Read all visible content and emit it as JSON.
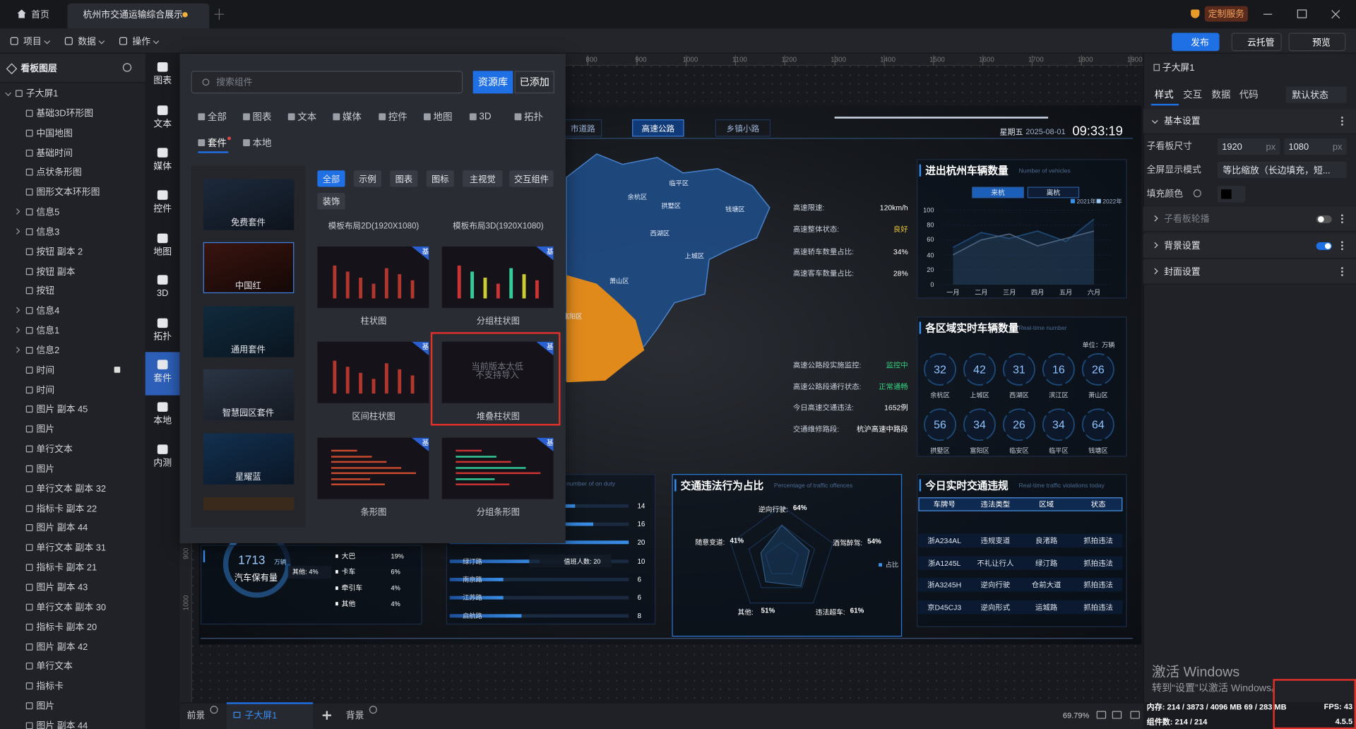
{
  "tabs": {
    "home": "首页",
    "document": "杭州市交通运输综合展示"
  },
  "custom_service": "定制服务",
  "toolbar": {
    "menus": [
      "项目",
      "数据",
      "操作"
    ],
    "actions": [
      "发布",
      "云托管",
      "预览"
    ]
  },
  "layers": {
    "title": "看板图层",
    "items": [
      "子大屏1",
      "基础3D环形图",
      "中国地图",
      "基础时间",
      "点状条形图",
      "图形文本环形图",
      "信息5",
      "信息3",
      "按钮 副本 2",
      "按钮 副本",
      "按钮",
      "信息4",
      "信息1",
      "信息2",
      "时间",
      "时间",
      "图片 副本 45",
      "图片",
      "单行文本",
      "图片",
      "单行文本 副本 32",
      "指标卡 副本 22",
      "图片 副本 44",
      "单行文本 副本 31",
      "指标卡 副本 21",
      "图片 副本 43",
      "单行文本 副本 30",
      "指标卡 副本 20",
      "图片 副本 42",
      "单行文本",
      "指标卡",
      "图片",
      "图片 副本 44"
    ]
  },
  "sidebar": [
    "图表",
    "文本",
    "媒体",
    "控件",
    "地图",
    "3D",
    "拓扑",
    "套件",
    "本地",
    "内测"
  ],
  "library": {
    "search_placeholder": "搜索组件",
    "tabs": [
      "资源库",
      "已添加"
    ],
    "categories": [
      "全部",
      "图表",
      "文本",
      "媒体",
      "控件",
      "地图",
      "3D",
      "拓扑",
      "套件",
      "本地"
    ],
    "kits": [
      "免费套件",
      "中国红",
      "通用套件",
      "智慧园区套件",
      "星耀蓝"
    ],
    "filters": [
      "全部",
      "示例",
      "图表",
      "图标",
      "主视觉",
      "交互组件",
      "装饰"
    ],
    "templates": [
      "模板布局2D(1920X1080)",
      "模板布局3D(1920X1080)"
    ],
    "cards": [
      {
        "name": "柱状图",
        "badge": "基"
      },
      {
        "name": "分组柱状图",
        "badge": "基"
      },
      {
        "name": "区间柱状图",
        "badge": "基"
      },
      {
        "name": "堆叠柱状图",
        "badge": "基"
      },
      {
        "name": "条形图",
        "badge": "基"
      },
      {
        "name": "分组条形图",
        "badge": "基"
      }
    ],
    "unsupported": "当前版本太低 不支持导入"
  },
  "ruler": {
    "top": [
      "800",
      "900",
      "1000",
      "1100",
      "1200",
      "1300",
      "1400",
      "1500",
      "1600",
      "1700",
      "1800",
      "1900"
    ],
    "left": [
      "900",
      "1000"
    ]
  },
  "dashboard": {
    "nav": [
      "市道路",
      "高速公路",
      "乡镇小路"
    ],
    "weekday": "星期五",
    "date": "2025-08-01",
    "time": "09:33:19",
    "districts": [
      "临平区",
      "余杭区",
      "拱墅区",
      "钱塘区",
      "西湖区",
      "上城区",
      "萧山区",
      "富阳区"
    ],
    "stats_top": [
      [
        "高速限速:",
        "120km/h"
      ],
      [
        "高速整体状态:",
        "良好"
      ],
      [
        "高速轿车数量占比:",
        "34%"
      ],
      [
        "高速客车数量占比:",
        "28%"
      ]
    ],
    "stats_bottom": [
      [
        "高速公路段实施监控:",
        "监控中"
      ],
      [
        "高速公路段通行状态:",
        "正常通畅"
      ],
      [
        "今日高速交通违法:",
        "1652例"
      ],
      [
        "交通维修路段:",
        "杭沪高速中路段"
      ]
    ],
    "vehicles": {
      "title": "进出杭州车辆数量",
      "subtitle": "Number of vehicles",
      "toggle": [
        "来杭",
        "离杭"
      ],
      "categories": [
        "一月",
        "二月",
        "三月",
        "四月",
        "五月",
        "六月"
      ],
      "yticks": [
        0,
        20,
        40,
        60,
        80,
        100
      ],
      "ylim": [
        0,
        100
      ],
      "series": [
        {
          "name": "2021年",
          "color": "#3a8ee6",
          "values": [
            50,
            70,
            62,
            72,
            58,
            88
          ]
        },
        {
          "name": "2022年",
          "color": "#9ec8f5",
          "values": [
            40,
            60,
            68,
            52,
            62,
            72
          ]
        }
      ]
    },
    "regions": {
      "title": "各区域实时车辆数量",
      "subtitle": "Real-time number",
      "unit": "单位：万辆",
      "items": [
        [
          "32",
          "余杭区"
        ],
        [
          "42",
          "上城区"
        ],
        [
          "31",
          "西湖区"
        ],
        [
          "16",
          "滨江区"
        ],
        [
          "26",
          "萧山区"
        ],
        [
          "56",
          "拱墅区"
        ],
        [
          "34",
          "富阳区"
        ],
        [
          "26",
          "临安区"
        ],
        [
          "34",
          "临平区"
        ],
        [
          "64",
          "钱塘区"
        ]
      ]
    },
    "offences": {
      "title": "交通违法行为占比",
      "subtitle": "Percentage of traffic offences",
      "legend": "占比",
      "axes": [
        "逆向行驶:",
        "酒驾醉驾:",
        "违法超车:",
        "其他:",
        "随意变道:"
      ],
      "values": [
        64,
        54,
        61,
        51,
        41
      ],
      "value_labels": [
        "64%",
        "54%",
        "61%",
        "51%",
        "41%"
      ]
    },
    "violations": {
      "title": "今日实时交通违规",
      "subtitle": "Real-time traffic violations today",
      "columns": [
        "车牌号",
        "违法类型",
        "区域",
        "状态"
      ],
      "rows": [
        [
          "浙A234AL",
          "违规变道",
          "良渚路",
          "抓拍违法"
        ],
        [
          "浙A1245L",
          "不礼让行人",
          "绿汀路",
          "抓拍违法"
        ],
        [
          "浙A3245H",
          "逆向行驶",
          "仓前大道",
          "抓拍违法"
        ],
        [
          "京D45CJ3",
          "逆向形式",
          "运城路",
          "抓拍违法"
        ]
      ]
    },
    "ownership": {
      "value": "1713",
      "unit": "万辆",
      "label": "汽车保有量",
      "tooltip": "其他: 4%",
      "legend": [
        [
          "大巴",
          "19%"
        ],
        [
          "卡车",
          "6%"
        ],
        [
          "牵引车",
          "4%"
        ],
        [
          "其他",
          "4%"
        ]
      ]
    },
    "duty": {
      "subtitle": "number of on duty",
      "tooltip": "值班人数: 20",
      "roads": [
        null,
        null,
        null,
        "绿汀路",
        "南京路",
        "江苏路",
        "启航路"
      ],
      "values": [
        14,
        16,
        20,
        10,
        6,
        6,
        8
      ],
      "xlim": [
        0,
        20
      ]
    }
  },
  "properties": {
    "title": "子大屏1",
    "tabs": [
      "样式",
      "交互",
      "数据",
      "代码"
    ],
    "state": "默认状态",
    "basic": "基本设置",
    "size_label": "子看板尺寸",
    "width": "1920",
    "height": "1080",
    "unit": "px",
    "fullscreen_label": "全屏显示模式",
    "fullscreen_value": "等比缩放（长边填充，短...",
    "fill_label": "填充颜色",
    "carousel": "子看板轮播",
    "background": "背景设置",
    "cover": "封面设置"
  },
  "bottom_bar": {
    "foreground": "前景",
    "screen": "子大屏1",
    "background": "背景",
    "zoom": "69.79%"
  },
  "watermark": {
    "title": "激活 Windows",
    "text": "转到“设置”以激活 Windows。"
  },
  "status": {
    "memory": "内存: 214 / 3873 / 4096 MB  69 / 283 MB",
    "fps": "FPS: 43",
    "components": "组件数: 214 / 214",
    "version": "4.5.5"
  }
}
